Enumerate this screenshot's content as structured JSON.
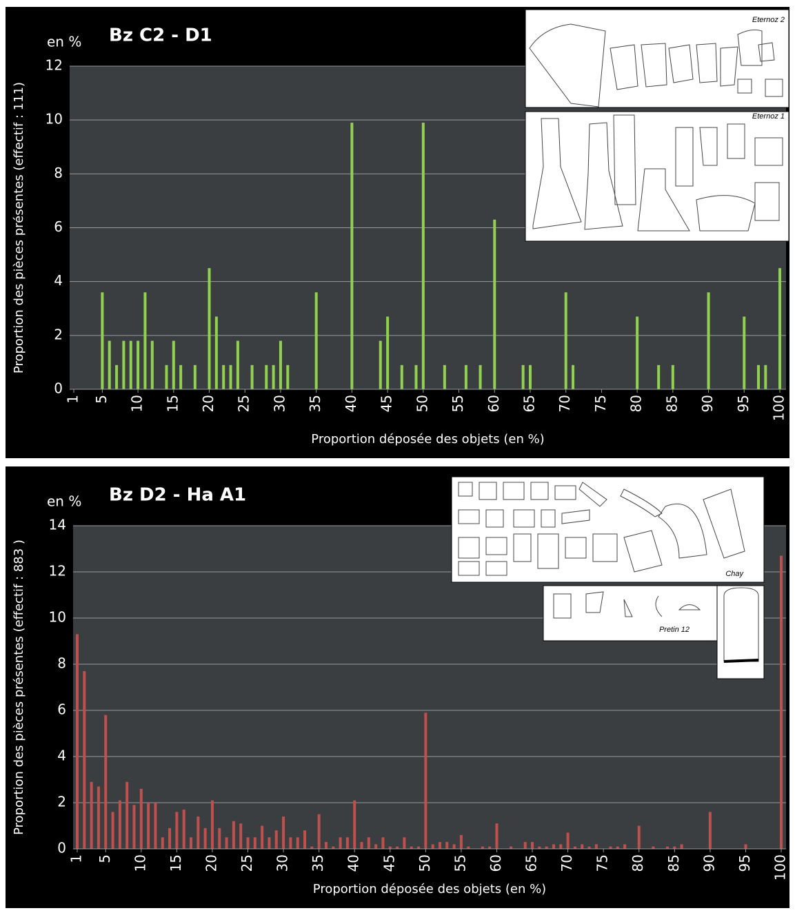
{
  "chart_data": [
    {
      "type": "bar",
      "unit_label": "en %",
      "title": "Bz C2 - D1",
      "ylabel": "Proportion des pièces présentes (effectif : 111)",
      "xlabel": "Proportion déposée des objets (en %)",
      "inset_captions": [
        "Eternoz 2",
        "Eternoz 1"
      ],
      "color": "#92d050",
      "grid": true,
      "xlim": [
        1,
        100
      ],
      "xticks": [
        1,
        5,
        10,
        15,
        20,
        25,
        30,
        35,
        40,
        45,
        50,
        55,
        60,
        65,
        70,
        75,
        80,
        85,
        90,
        95,
        100
      ],
      "ylim": [
        0,
        12
      ],
      "yticks": [
        0,
        2,
        4,
        6,
        8,
        10,
        12
      ],
      "x": [
        5,
        6,
        7,
        8,
        9,
        10,
        11,
        12,
        14,
        15,
        16,
        18,
        20,
        21,
        22,
        23,
        24,
        26,
        28,
        29,
        30,
        31,
        35,
        40,
        44,
        45,
        47,
        49,
        50,
        53,
        56,
        58,
        60,
        64,
        65,
        70,
        71,
        80,
        83,
        85,
        90,
        95,
        97,
        98,
        100
      ],
      "values": [
        3.6,
        1.8,
        0.9,
        1.8,
        1.8,
        1.8,
        3.6,
        1.8,
        0.9,
        1.8,
        0.9,
        0.9,
        4.5,
        2.7,
        0.9,
        0.9,
        1.8,
        0.9,
        0.9,
        0.9,
        1.8,
        0.9,
        3.6,
        9.9,
        1.8,
        2.7,
        0.9,
        0.9,
        9.9,
        0.9,
        0.9,
        0.9,
        6.3,
        0.9,
        0.9,
        3.6,
        0.9,
        2.7,
        0.9,
        0.9,
        3.6,
        2.7,
        0.9,
        0.9,
        4.5
      ]
    },
    {
      "type": "bar",
      "unit_label": "en %",
      "title": "Bz D2 - Ha A1",
      "ylabel": "Proportion des pièces présentes (effectif : 883 )",
      "xlabel": "Proportion déposée des objets (en %)",
      "inset_captions": [
        "Chay",
        "Pretin 12"
      ],
      "color": "#c0504d",
      "grid": true,
      "xlim": [
        1,
        100
      ],
      "xticks": [
        1,
        5,
        10,
        15,
        20,
        25,
        30,
        35,
        40,
        45,
        50,
        55,
        60,
        65,
        70,
        75,
        80,
        85,
        90,
        95,
        100
      ],
      "ylim": [
        0,
        14
      ],
      "yticks": [
        0,
        2,
        4,
        6,
        8,
        10,
        12,
        14
      ],
      "x": [
        1,
        2,
        3,
        4,
        5,
        6,
        7,
        8,
        9,
        10,
        11,
        12,
        13,
        14,
        15,
        16,
        17,
        18,
        19,
        20,
        21,
        22,
        23,
        24,
        25,
        26,
        27,
        28,
        29,
        30,
        31,
        32,
        33,
        34,
        35,
        36,
        37,
        38,
        39,
        40,
        41,
        42,
        43,
        44,
        45,
        46,
        47,
        48,
        49,
        50,
        51,
        52,
        53,
        54,
        55,
        56,
        58,
        59,
        60,
        62,
        64,
        65,
        66,
        67,
        68,
        69,
        70,
        71,
        72,
        73,
        74,
        76,
        77,
        78,
        80,
        82,
        84,
        85,
        86,
        90,
        95,
        100
      ],
      "values": [
        9.3,
        7.7,
        2.9,
        2.7,
        5.8,
        1.6,
        2.1,
        2.9,
        1.9,
        2.6,
        2.0,
        2.0,
        0.5,
        0.9,
        1.6,
        1.7,
        0.5,
        1.4,
        0.9,
        2.1,
        0.9,
        0.5,
        1.2,
        1.1,
        0.5,
        0.5,
        1.0,
        0.5,
        0.8,
        1.4,
        0.5,
        0.5,
        0.8,
        0.1,
        1.5,
        0.3,
        0.1,
        0.5,
        0.5,
        2.1,
        0.3,
        0.5,
        0.2,
        0.5,
        0.1,
        0.1,
        0.5,
        0.1,
        0.1,
        5.9,
        0.2,
        0.3,
        0.3,
        0.2,
        0.6,
        0.1,
        0.1,
        0.1,
        1.1,
        0.1,
        0.3,
        0.3,
        0.1,
        0.1,
        0.2,
        0.2,
        0.7,
        0.1,
        0.2,
        0.1,
        0.2,
        0.1,
        0.1,
        0.2,
        1.0,
        0.1,
        0.1,
        0.1,
        0.2,
        1.6,
        0.2,
        12.7
      ]
    }
  ]
}
